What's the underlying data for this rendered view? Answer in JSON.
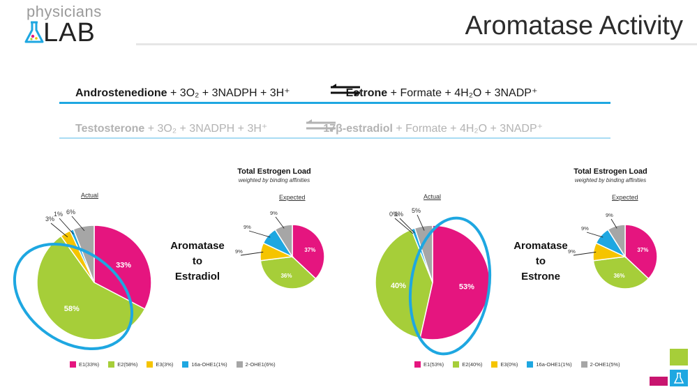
{
  "header": {
    "logo_top": "physicians",
    "logo_bottom": "LAB",
    "title": "Aromatase Activity"
  },
  "equations": {
    "eq1": {
      "reactant": "Androstenedione",
      "reactant_rest": " + 3O₂ + 3NADPH + 3H⁺",
      "product": "Estrone",
      "product_rest": " + Formate + 4H₂O + 3NADP⁺"
    },
    "eq2": {
      "reactant": "Testosterone",
      "reactant_rest": " + 3O₂ + 3NADPH + 3H⁺",
      "product": "17β-estradiol",
      "product_rest": " + Formate + 4H₂O + 3NADP⁺"
    }
  },
  "panels": {
    "left": {
      "aromatase_lines": [
        "Aromatase",
        "to",
        "Estradiol"
      ],
      "actual_label": "Actual",
      "expected_label": "Expected",
      "tel_title": "Total Estrogen Load",
      "tel_sub": "weighted by binding affinities",
      "legend": [
        "E1(33%)",
        "E2(58%)",
        "E3(3%)",
        "16a-OHE1(1%)",
        "2-OHE1(6%)"
      ]
    },
    "right": {
      "aromatase_lines": [
        "Aromatase",
        "to",
        "Estrone"
      ],
      "actual_label": "Actual",
      "expected_label": "Expected",
      "tel_title": "Total Estrogen Load",
      "tel_sub": "weighted by binding affinities",
      "legend": [
        "E1(53%)",
        "E2(40%)",
        "E3(0%)",
        "16a-OHE1(1%)",
        "2-OHE1(5%)"
      ]
    }
  },
  "colors": {
    "E1": "#e5157f",
    "E2": "#a6ce39",
    "E3": "#f5c400",
    "16a-OHE1": "#1ea7e1",
    "2-OHE1": "#a6a6a6",
    "highlight": "#1ea7e1"
  },
  "chart_data": [
    {
      "type": "pie",
      "title": "Actual",
      "categories": [
        "E1",
        "E2",
        "E3",
        "16a-OHE1",
        "2-OHE1"
      ],
      "values": [
        33,
        58,
        3,
        1,
        6
      ],
      "labels": [
        "33%",
        "58%",
        "3%",
        "1%",
        "6%"
      ]
    },
    {
      "type": "pie",
      "title": "Expected",
      "categories": [
        "E1",
        "E2",
        "E3",
        "16a-OHE1",
        "2-OHE1"
      ],
      "values": [
        37,
        36,
        9,
        9,
        9
      ],
      "labels": [
        "37%",
        "36%",
        "9%",
        "9%",
        "9%"
      ]
    },
    {
      "type": "pie",
      "title": "Actual",
      "categories": [
        "E1",
        "E2",
        "E3",
        "16a-OHE1",
        "2-OHE1"
      ],
      "values": [
        53,
        40,
        0,
        1,
        5
      ],
      "labels": [
        "53%",
        "40%",
        "0%",
        "1%",
        "5%"
      ]
    },
    {
      "type": "pie",
      "title": "Expected",
      "categories": [
        "E1",
        "E2",
        "E3",
        "16a-OHE1",
        "2-OHE1"
      ],
      "values": [
        37,
        36,
        9,
        9,
        9
      ],
      "labels": [
        "37%",
        "36%",
        "9%",
        "9%",
        "9%"
      ]
    }
  ]
}
